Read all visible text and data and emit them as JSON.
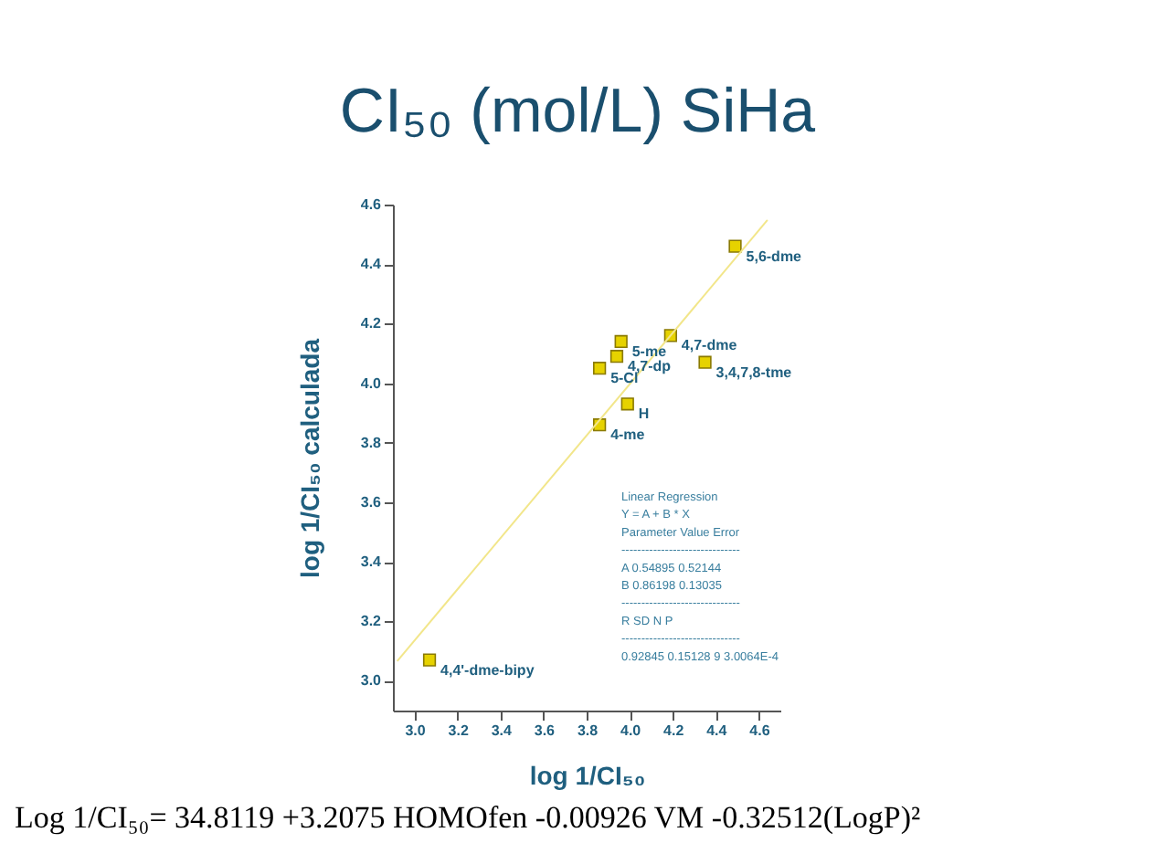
{
  "chart_data": {
    "type": "scatter",
    "title": "CI₅₀ (mol/L) SiHa",
    "xlabel": "log 1/CI₅₀",
    "ylabel": "log 1/CI₅₀ calculada",
    "series": [
      {
        "color": "#e6d200",
        "marker": "square",
        "x": [
          4.49,
          4.19,
          3.96,
          3.94,
          3.86,
          4.35,
          3.99,
          3.86,
          3.07
        ],
        "values": [
          4.46,
          4.16,
          4.14,
          4.09,
          4.05,
          4.07,
          3.93,
          3.86,
          3.07
        ]
      },
      {
        "type": "line",
        "color": "#f2e68a",
        "x": [
          2.92,
          4.64
        ],
        "values": [
          3.066,
          4.548
        ]
      }
    ],
    "xlim": [
      2.9,
      4.7
    ],
    "ylim": [
      2.9,
      4.6
    ],
    "xticks": [
      {
        "value": 3,
        "label": "3.0"
      },
      3.2,
      3.4,
      3.6,
      3.8,
      {
        "value": 4,
        "label": "4.0"
      },
      4.2,
      4.4,
      4.6
    ],
    "yticks": [
      {
        "value": 3,
        "label": "3.0"
      },
      3.2,
      3.4,
      3.6,
      3.8,
      {
        "value": 4,
        "label": "4.0"
      },
      4.2,
      4.4,
      4.6
    ],
    "grid": false,
    "annotations": [
      {
        "text": "5,6-dme",
        "x": 4.49,
        "y": 4.46
      },
      {
        "text": "4,7-dme",
        "x": 4.19,
        "y": 4.16
      },
      {
        "text": "5-me",
        "x": 3.96,
        "y": 4.14
      },
      {
        "text": "4,7-dp",
        "x": 3.94,
        "y": 4.09
      },
      {
        "text": "5-Cl",
        "x": 3.86,
        "y": 4.05
      },
      {
        "text": "3,4,7,8-tme",
        "x": 4.35,
        "y": 4.07
      },
      {
        "text": "H",
        "x": 3.99,
        "y": 3.93
      },
      {
        "text": "4-me",
        "x": 3.86,
        "y": 3.86
      },
      {
        "text": "4,4'-dme-bipy",
        "x": 3.07,
        "y": 3.07
      },
      "Linear Regression",
      "Y = A + B * X",
      "Parameter  Value  Error",
      "------------------------------",
      "A           0.54895  0.52144",
      "B           0.86198  0.13035",
      "------------------------------",
      "R          SD        N     P",
      "------------------------------",
      "0.92845 0.15128 9  3.0064E-4",
      "Log 1/CI₅₀= 34.8119 +3.2075 HOMOfen -0.00926 VM -0.32512(LogP)²"
    ]
  }
}
